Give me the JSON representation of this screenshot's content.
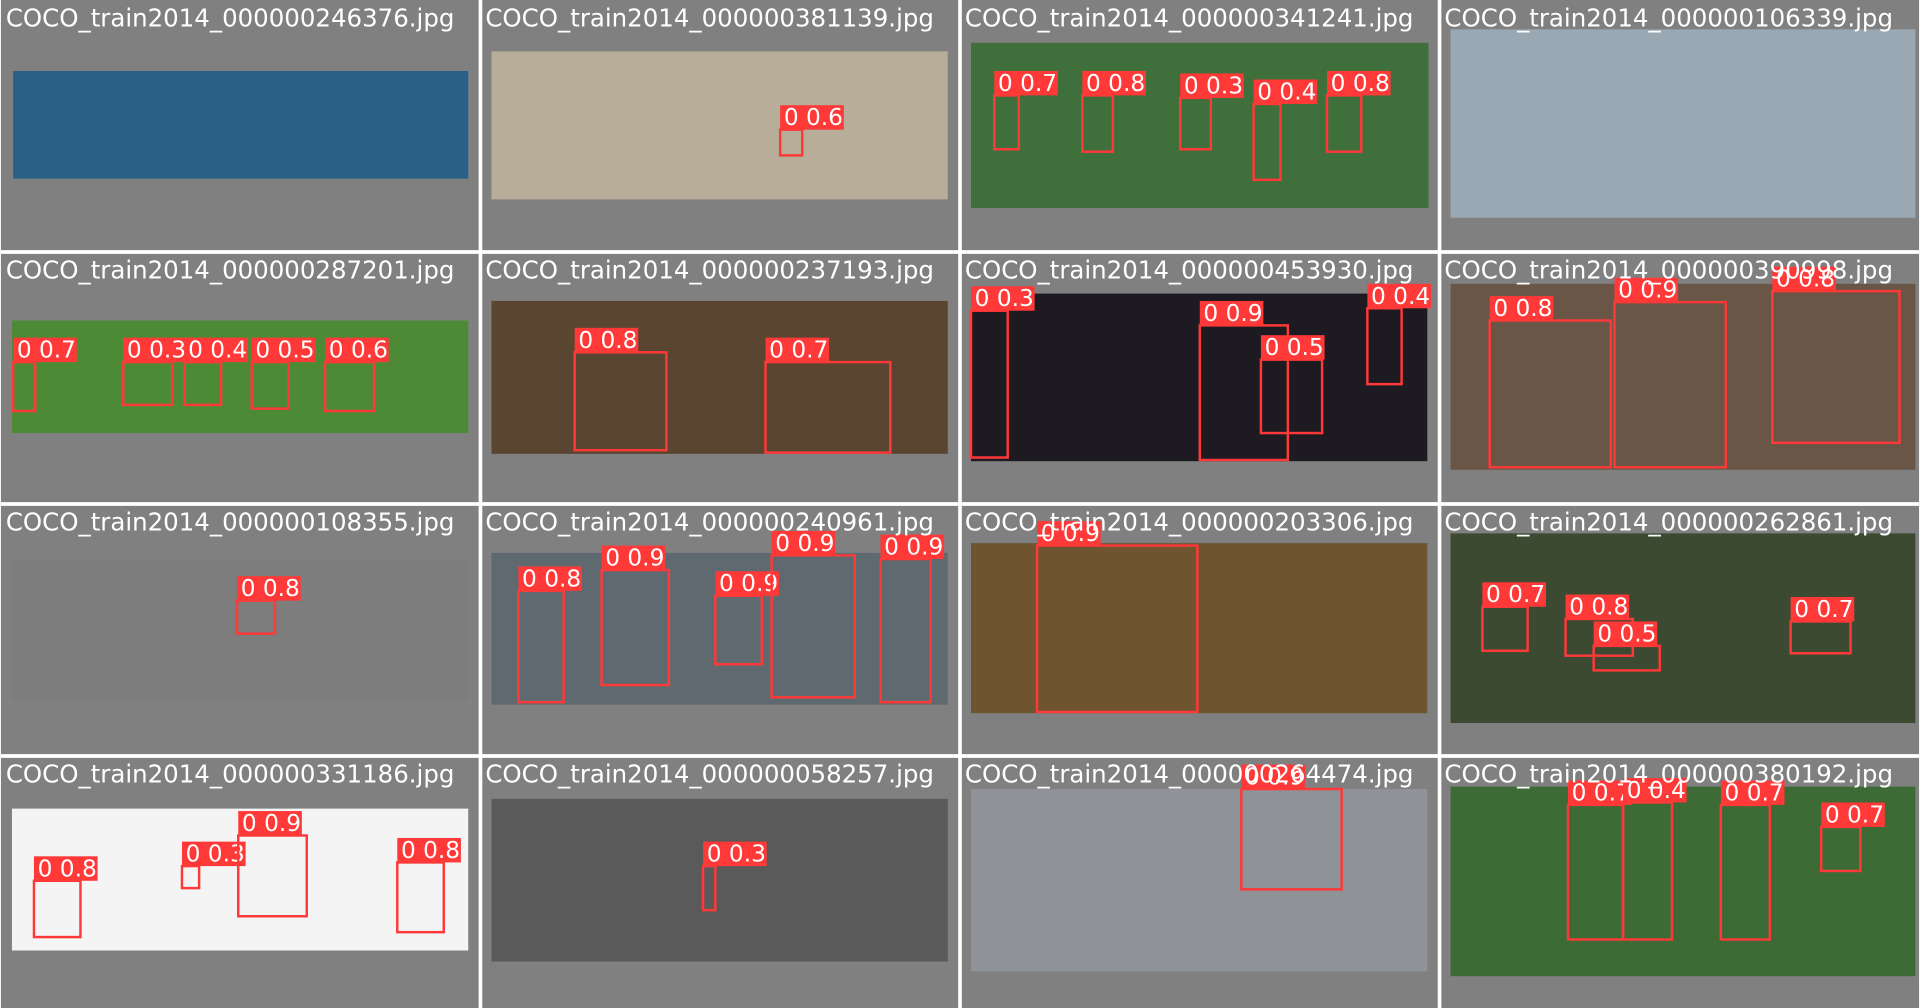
{
  "tiles": [
    {
      "filename": "COCO_train2014_000000246376.jpg",
      "detections": []
    },
    {
      "filename": "COCO_train2014_000000381139.jpg",
      "detections": [
        "0 0.6"
      ]
    },
    {
      "filename": "COCO_train2014_000000341241.jpg",
      "detections": [
        "0 0.7",
        "0 0.8",
        "0 0.3",
        "0 0.4",
        "0 0.8"
      ]
    },
    {
      "filename": "COCO_train2014_000000106339.jpg",
      "detections": []
    },
    {
      "filename": "COCO_train2014_000000287201.jpg",
      "detections": [
        "0 0.7",
        "0 0.3",
        "0 0.4",
        "0 0.5",
        "0 0.6"
      ]
    },
    {
      "filename": "COCO_train2014_000000237193.jpg",
      "detections": [
        "0 0.8",
        "0 0.7"
      ]
    },
    {
      "filename": "COCO_train2014_000000453930.jpg",
      "detections": [
        "0 0.3",
        "0 0.9",
        "0 0.5",
        "0 0.4"
      ]
    },
    {
      "filename": "COCO_train2014_000000390998.jpg",
      "detections": [
        "0 0.8",
        "0 0.9",
        "0 0.8"
      ]
    },
    {
      "filename": "COCO_train2014_000000108355.jpg",
      "detections": [
        "0 0.8"
      ]
    },
    {
      "filename": "COCO_train2014_000000240961.jpg",
      "detections": [
        "0 0.8",
        "0 0.9",
        "0 0.9",
        "0 0.9",
        "0 0.9"
      ]
    },
    {
      "filename": "COCO_train2014_000000203306.jpg",
      "detections": [
        "0 0.9"
      ]
    },
    {
      "filename": "COCO_train2014_000000262861.jpg",
      "detections": [
        "0 0.7",
        "0 0.8",
        "0 0.5",
        "0 0.7"
      ]
    },
    {
      "filename": "COCO_train2014_000000331186.jpg",
      "detections": [
        "0 0.8",
        "0 0.3",
        "0 0.9",
        "0 0.8"
      ]
    },
    {
      "filename": "COCO_train2014_000000058257.jpg",
      "detections": [
        "0 0.3"
      ]
    },
    {
      "filename": "COCO_train2014_000000264474.jpg",
      "detections": [
        "0 0.9"
      ]
    },
    {
      "filename": "COCO_train2014_000000380192.jpg",
      "detections": [
        "0 0.7",
        "0 0.4",
        "0 0.7",
        "0 0.7"
      ]
    }
  ]
}
